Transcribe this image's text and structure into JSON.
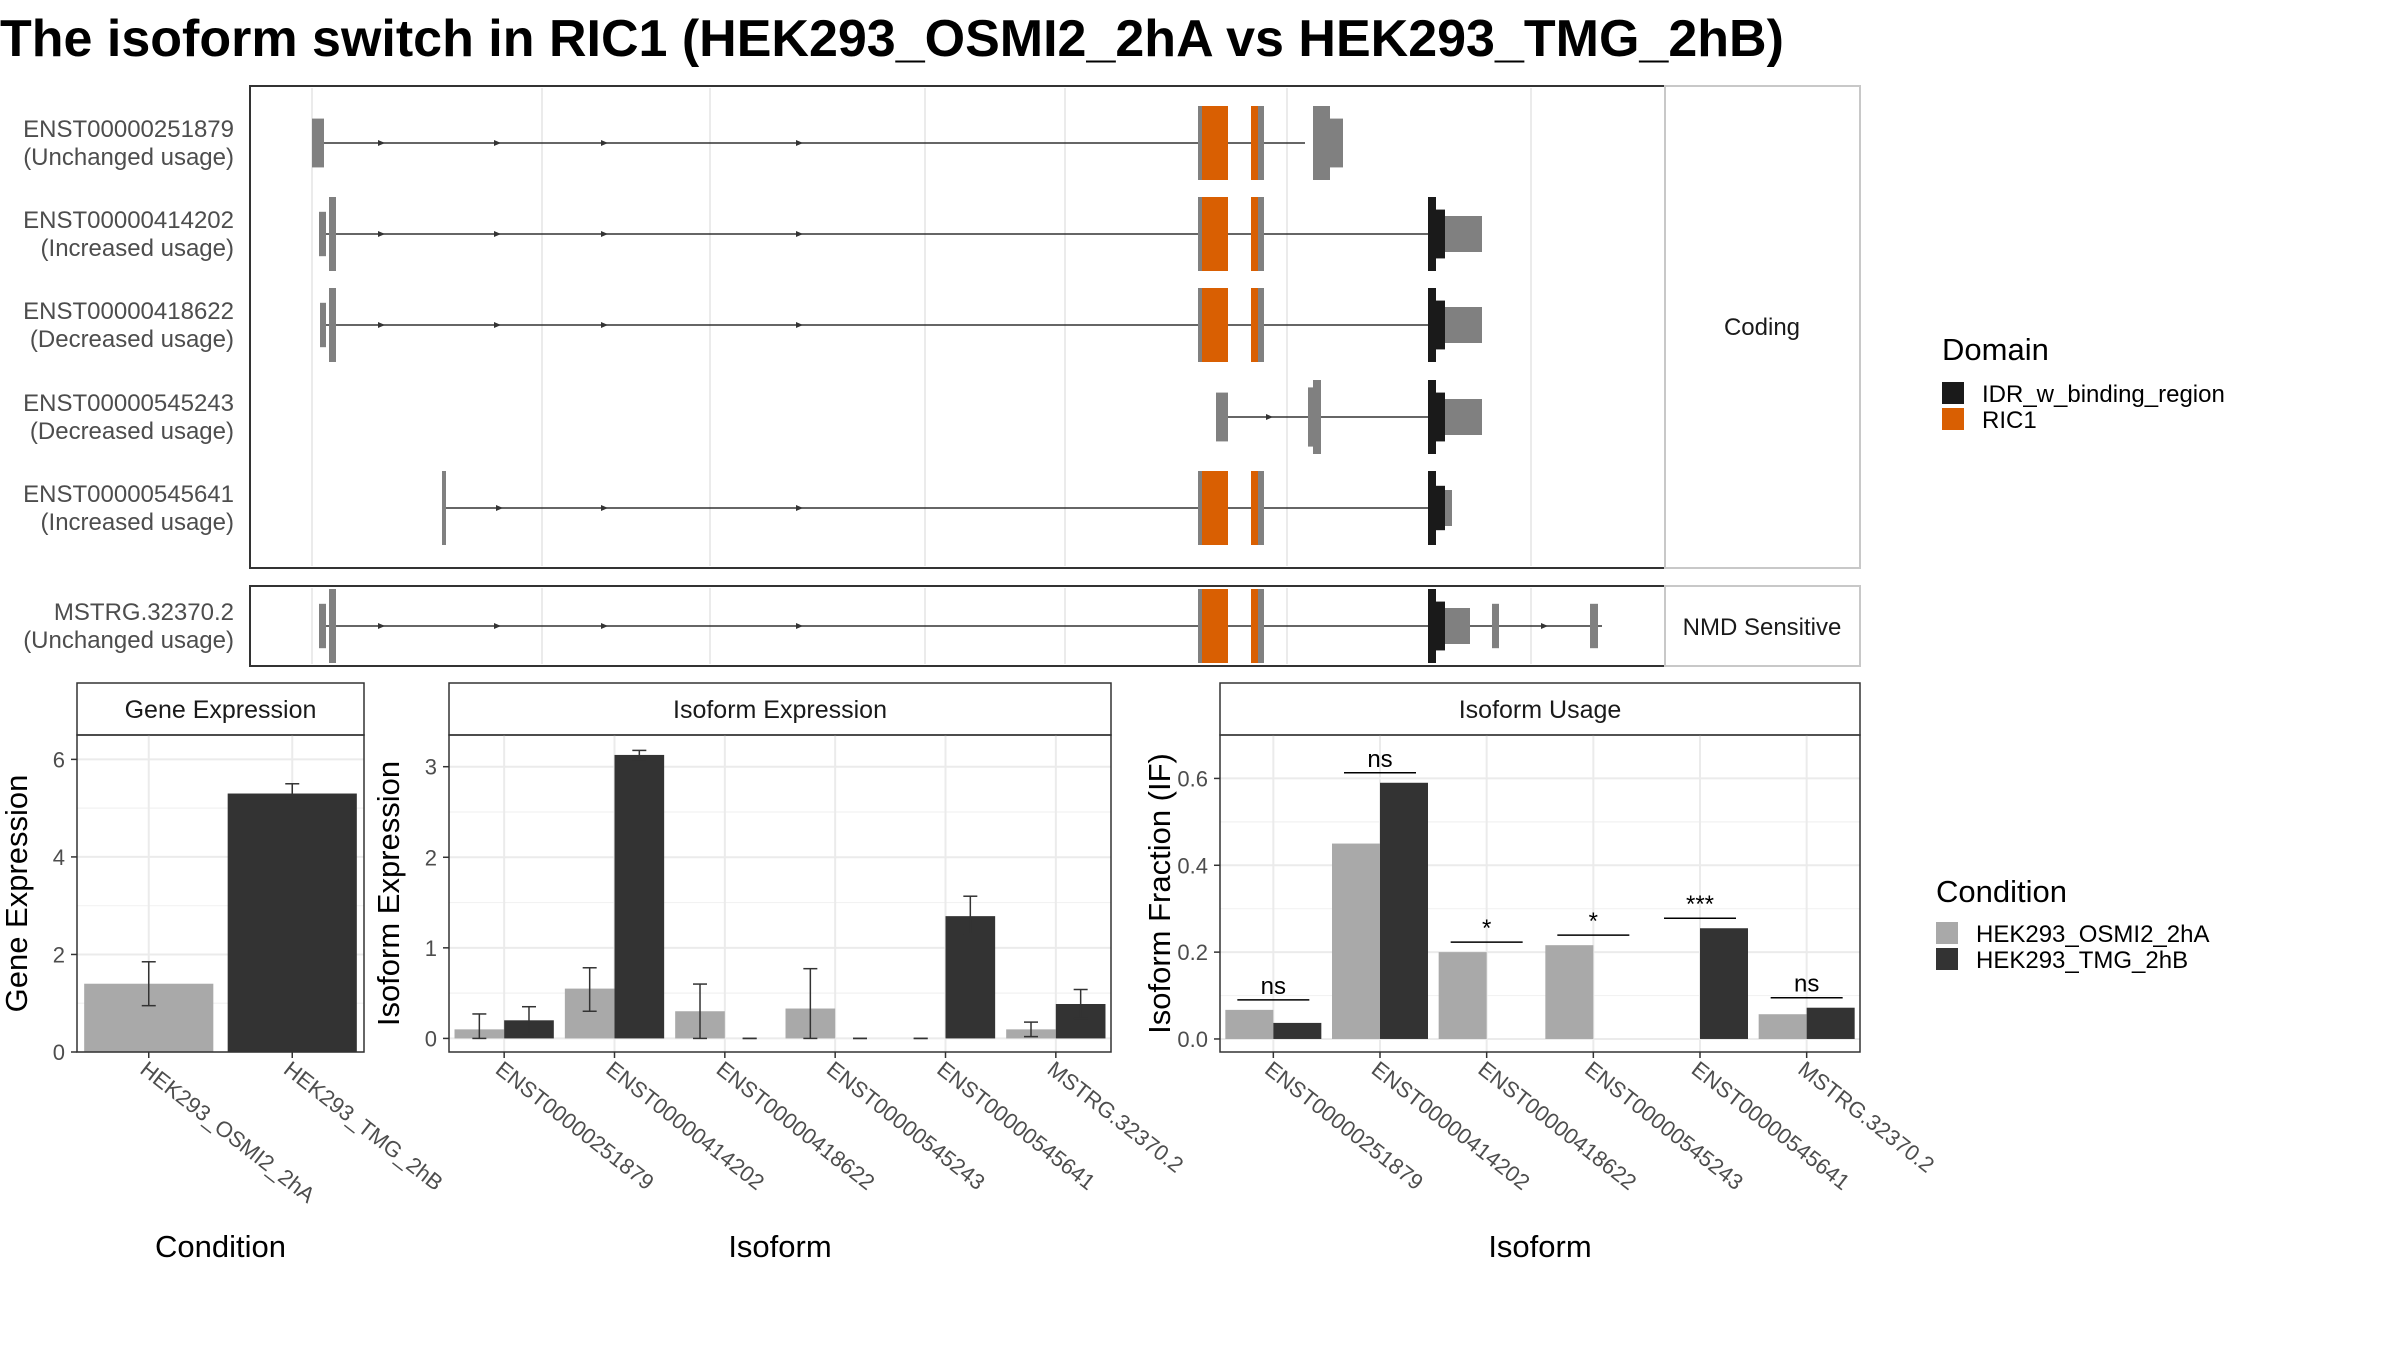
{
  "title": "The isoform switch in RIC1 (HEK293_OSMI2_2hA vs HEK293_TMG_2hB)",
  "colors": {
    "exon": "#808080",
    "RIC1": "#D95F02",
    "IDR_w_binding_region": "#1A1A1A",
    "cond1": "#A9A9A9",
    "cond2": "#333333",
    "panel_border": "#333333",
    "grid": "#EBEBEB"
  },
  "transcripts": {
    "facet_coding": "Coding",
    "facet_nmd": "NMD Sensitive",
    "tracks": [
      {
        "id": "ENST00000251879",
        "status": "(Unchanged usage)",
        "group": "coding"
      },
      {
        "id": "ENST00000414202",
        "status": "(Increased usage)",
        "group": "coding"
      },
      {
        "id": "ENST00000418622",
        "status": "(Decreased usage)",
        "group": "coding"
      },
      {
        "id": "ENST00000545243",
        "status": "(Decreased usage)",
        "group": "coding"
      },
      {
        "id": "ENST00000545641",
        "status": "(Increased usage)",
        "group": "coding"
      },
      {
        "id": "MSTRG.32370.2",
        "status": "(Unchanged usage)",
        "group": "nmd"
      }
    ]
  },
  "legend_domain": {
    "title": "Domain",
    "items": [
      {
        "label": "IDR_w_binding_region",
        "color": "#1A1A1A"
      },
      {
        "label": "RIC1",
        "color": "#D95F02"
      }
    ]
  },
  "legend_condition": {
    "title": "Condition",
    "items": [
      {
        "label": "HEK293_OSMI2_2hA",
        "color": "#A9A9A9"
      },
      {
        "label": "HEK293_TMG_2hB",
        "color": "#333333"
      }
    ]
  },
  "chart_data": [
    {
      "type": "bar",
      "title": "Gene Expression",
      "xlabel": "Condition",
      "ylabel": "Gene Expression",
      "categories": [
        "HEK293_OSMI2_2hA",
        "HEK293_TMG_2hB"
      ],
      "values": [
        1.4,
        5.3
      ],
      "errors": [
        [
          0.95,
          1.85
        ],
        [
          5.2,
          5.5
        ]
      ],
      "ylim": [
        0,
        6.5
      ],
      "yticks": [
        0,
        2,
        4,
        6
      ]
    },
    {
      "type": "bar",
      "title": "Isoform Expression",
      "xlabel": "Isoform",
      "ylabel": "Isoform Expression",
      "categories": [
        "ENST00000251879",
        "ENST00000414202",
        "ENST00000418622",
        "ENST00000545243",
        "ENST00000545641",
        "MSTRG.32370.2"
      ],
      "series": [
        {
          "name": "HEK293_OSMI2_2hA",
          "values": [
            0.1,
            0.55,
            0.3,
            0.33,
            0.0,
            0.1
          ],
          "errors": [
            [
              0.0,
              0.27
            ],
            [
              0.3,
              0.78
            ],
            [
              0.0,
              0.6
            ],
            [
              0.0,
              0.77
            ],
            [
              0.0,
              0.0
            ],
            [
              0.02,
              0.18
            ]
          ]
        },
        {
          "name": "HEK293_TMG_2hB",
          "values": [
            0.2,
            3.13,
            0.0,
            0.0,
            1.35,
            0.38
          ],
          "errors": [
            [
              0.05,
              0.35
            ],
            [
              3.08,
              3.18
            ],
            [
              0.0,
              0.0
            ],
            [
              0.0,
              0.0
            ],
            [
              1.15,
              1.57
            ],
            [
              0.22,
              0.54
            ]
          ]
        }
      ],
      "ylim": [
        -0.15,
        3.35
      ],
      "yticks": [
        0,
        1,
        2,
        3
      ]
    },
    {
      "type": "bar",
      "title": "Isoform Usage",
      "xlabel": "Isoform",
      "ylabel": "Isoform Fraction (IF)",
      "categories": [
        "ENST00000251879",
        "ENST00000414202",
        "ENST00000418622",
        "ENST00000545243",
        "ENST00000545641",
        "MSTRG.32370.2"
      ],
      "series": [
        {
          "name": "HEK293_OSMI2_2hA",
          "values": [
            0.067,
            0.45,
            0.2,
            0.216,
            0.0,
            0.057
          ]
        },
        {
          "name": "HEK293_TMG_2hB",
          "values": [
            0.037,
            0.59,
            0.0,
            0.0,
            0.255,
            0.072
          ]
        }
      ],
      "significance": [
        "ns",
        "ns",
        "*",
        "*",
        "***",
        "ns"
      ],
      "ylim": [
        -0.03,
        0.7
      ],
      "yticks": [
        0.0,
        0.2,
        0.4,
        0.6
      ],
      "ytick_labels": [
        "0.0",
        "0.2",
        "0.4",
        "0.6"
      ]
    }
  ]
}
